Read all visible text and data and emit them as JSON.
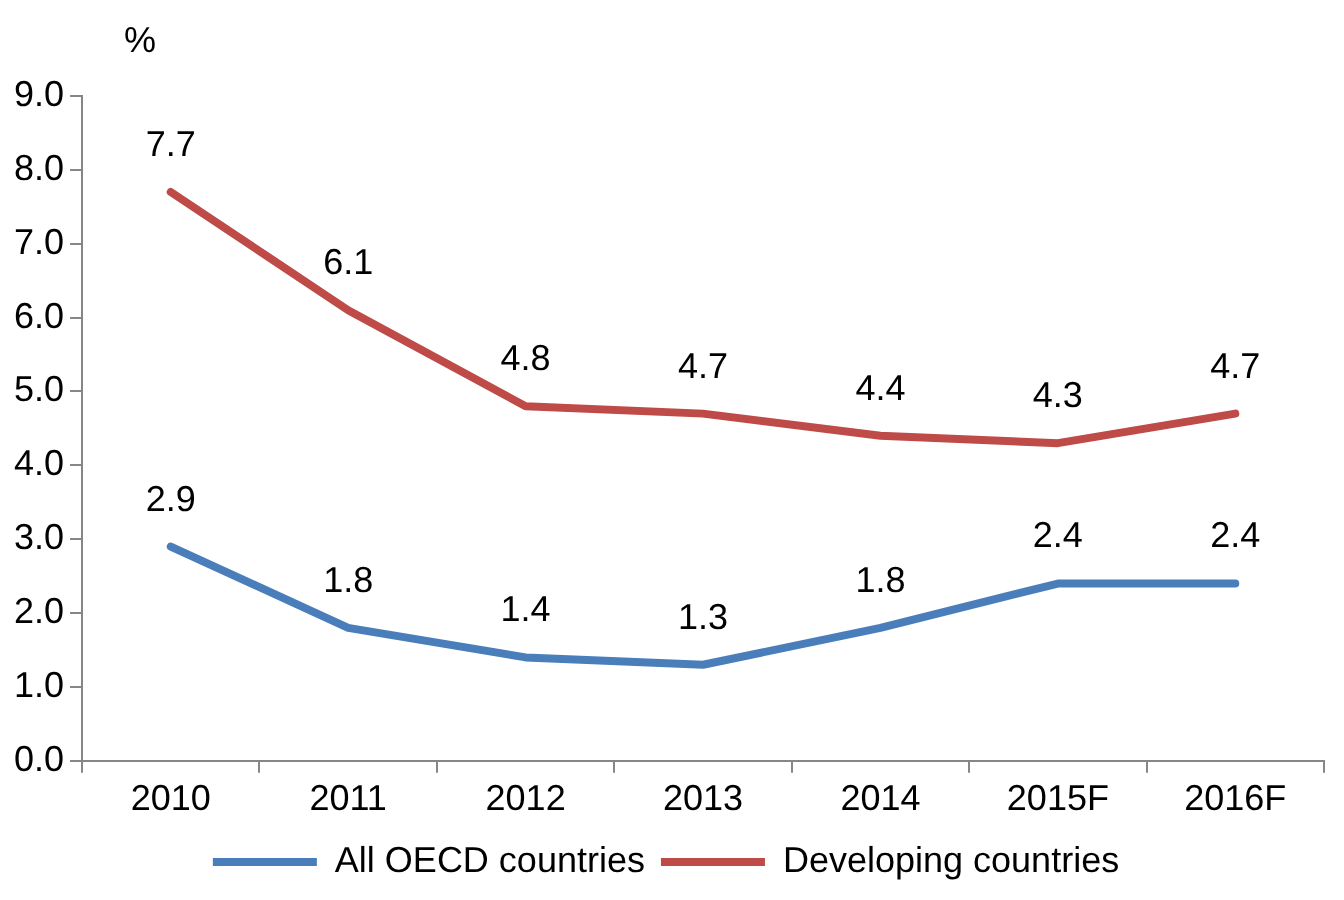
{
  "chart_data": {
    "type": "line",
    "ylabel": "%",
    "categories": [
      "2010",
      "2011",
      "2012",
      "2013",
      "2014",
      "2015F",
      "2016F"
    ],
    "series": [
      {
        "name": "All OECD countries",
        "color": "#4a7ebb",
        "values": [
          2.9,
          1.8,
          1.4,
          1.3,
          1.8,
          2.4,
          2.4
        ]
      },
      {
        "name": "Developing countries",
        "color": "#be4b48",
        "values": [
          7.7,
          6.1,
          4.8,
          4.7,
          4.4,
          4.3,
          4.7
        ]
      }
    ],
    "ylim": [
      0,
      9
    ],
    "yticks": [
      {
        "value": 0,
        "label": "0.0"
      },
      {
        "value": 1,
        "label": "1.0"
      },
      {
        "value": 2,
        "label": "2.0"
      },
      {
        "value": 3,
        "label": "3.0"
      },
      {
        "value": 4,
        "label": "4.0"
      },
      {
        "value": 5,
        "label": "5.0"
      },
      {
        "value": 6,
        "label": "6.0"
      },
      {
        "value": 7,
        "label": "7.0"
      },
      {
        "value": 8,
        "label": "8.0"
      },
      {
        "value": 9,
        "label": "9.0"
      }
    ],
    "grid": false,
    "legend": "bottom",
    "marker": "none",
    "line_style": "solid",
    "data_labels": true
  }
}
